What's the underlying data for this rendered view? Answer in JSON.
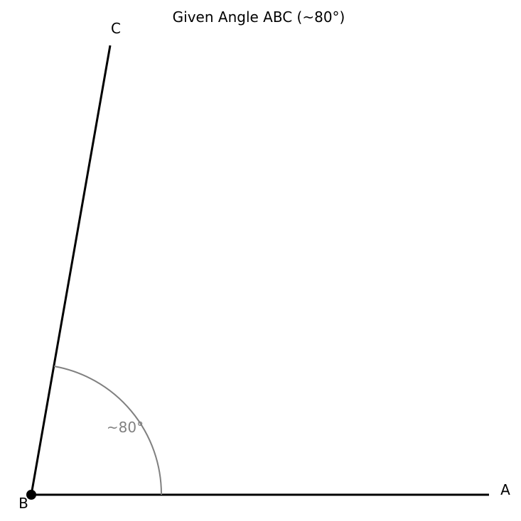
{
  "title": "Given Angle ABC (~80°)",
  "points": {
    "A": "A",
    "B": "B",
    "C": "C"
  },
  "angle": {
    "label": "~80°",
    "degrees": 80
  },
  "colors": {
    "ray": "#000000",
    "arc": "#808080",
    "vertex": "#000000"
  }
}
